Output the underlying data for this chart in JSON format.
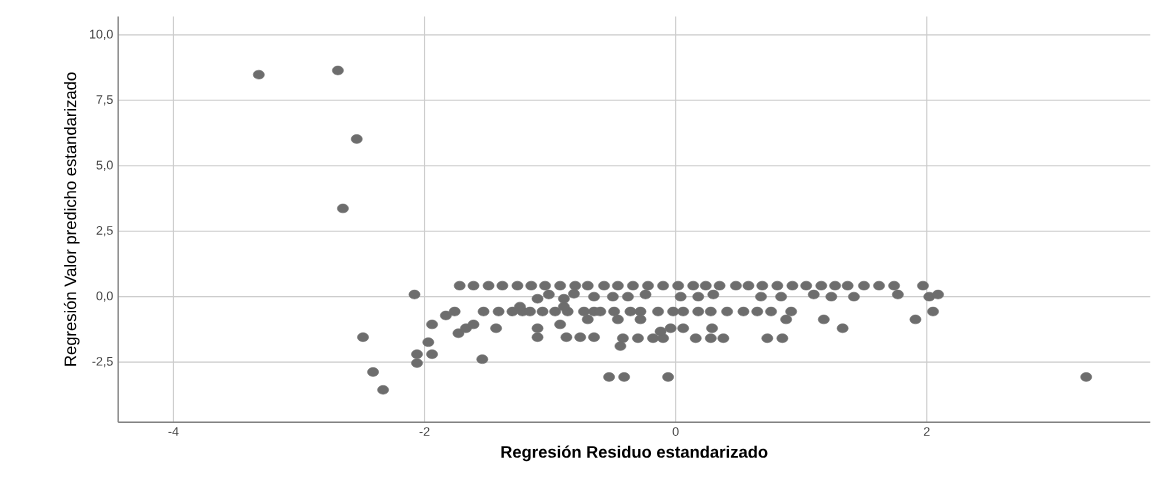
{
  "chart_data": {
    "type": "scatter",
    "xlabel": "Regresión Residuo estandarizado",
    "ylabel": "Regresión Valor predicho estandarizado",
    "xlim": [
      -4.44,
      3.78
    ],
    "ylim": [
      -4.8,
      10.7
    ],
    "xticks": [
      -4,
      -2,
      0,
      2
    ],
    "yticks": [
      {
        "value": -2.5,
        "label": "-2,5"
      },
      {
        "value": 0,
        "label": "0,0"
      },
      {
        "value": 2.5,
        "label": "2,5"
      },
      {
        "value": 5,
        "label": "5,0"
      },
      {
        "value": 7.5,
        "label": "7,5"
      },
      {
        "value": 10,
        "label": "10,0"
      }
    ],
    "grid": true,
    "marker": "circle",
    "color": "#6d6d6d",
    "x": [
      -3.32,
      -2.69,
      -2.54,
      -2.65,
      -2.08,
      -2.49,
      -2.41,
      -2.33,
      -2.06,
      -2.06,
      -1.94,
      -1.97,
      -1.94,
      -1.83,
      -1.76,
      -1.73,
      -1.67,
      -1.61,
      -1.54,
      -1.43,
      -1.72,
      -1.61,
      -1.49,
      -1.38,
      -1.26,
      -1.15,
      -1.04,
      -0.92,
      -0.8,
      -0.7,
      -0.57,
      -0.46,
      -0.34,
      -0.22,
      -0.1,
      0.02,
      0.14,
      0.24,
      0.35,
      0.48,
      0.58,
      0.69,
      0.81,
      0.93,
      1.04,
      1.16,
      1.27,
      1.37,
      1.5,
      1.62,
      1.74,
      1.97,
      -1.1,
      -1.01,
      -0.89,
      -0.81,
      -0.65,
      -0.5,
      -0.38,
      -0.24,
      0.04,
      0.18,
      0.3,
      0.68,
      0.84,
      1.1,
      1.24,
      1.42,
      1.77,
      2.02,
      2.09,
      -1.53,
      -1.41,
      -1.3,
      -1.22,
      -1.16,
      -1.06,
      -0.96,
      -0.86,
      -0.73,
      -0.65,
      -0.6,
      -0.49,
      -0.36,
      -0.28,
      -0.14,
      -0.02,
      0.06,
      0.18,
      0.28,
      0.41,
      0.54,
      0.65,
      0.76,
      0.92,
      2.05,
      -1.24,
      -0.89,
      -0.46,
      -0.28,
      0.88,
      1.18,
      1.91,
      -0.7,
      0.06,
      0.29,
      1.33,
      -1.1,
      -0.92,
      -1.1,
      -0.87,
      -0.76,
      -0.65,
      -0.42,
      -0.3,
      -0.18,
      -0.1,
      0.16,
      0.28,
      0.38,
      0.73,
      0.85,
      -0.44,
      -0.12,
      -0.04,
      -0.53,
      -0.41,
      -0.06,
      3.27
    ],
    "values": [
      8.48,
      8.64,
      6.02,
      3.37,
      0.08,
      -1.55,
      -2.88,
      -3.56,
      -2.54,
      -2.2,
      -2.2,
      -1.74,
      -1.06,
      -0.72,
      -0.57,
      -1.4,
      -1.21,
      -1.06,
      -2.39,
      -1.21,
      0.42,
      0.42,
      0.42,
      0.42,
      0.42,
      0.42,
      0.42,
      0.42,
      0.42,
      0.42,
      0.42,
      0.42,
      0.42,
      0.42,
      0.42,
      0.42,
      0.42,
      0.42,
      0.42,
      0.42,
      0.42,
      0.42,
      0.42,
      0.42,
      0.42,
      0.42,
      0.42,
      0.42,
      0.42,
      0.42,
      0.42,
      0.42,
      -0.08,
      0.08,
      -0.08,
      0.11,
      0.0,
      0.0,
      0.0,
      0.08,
      0.0,
      0.0,
      0.08,
      0.0,
      0.0,
      0.08,
      0.0,
      0.0,
      0.08,
      0.0,
      0.08,
      -0.57,
      -0.57,
      -0.57,
      -0.57,
      -0.57,
      -0.57,
      -0.57,
      -0.57,
      -0.57,
      -0.57,
      -0.57,
      -0.57,
      -0.57,
      -0.57,
      -0.57,
      -0.57,
      -0.57,
      -0.57,
      -0.57,
      -0.57,
      -0.57,
      -0.57,
      -0.57,
      -0.57,
      -0.57,
      -0.38,
      -0.38,
      -0.87,
      -0.87,
      -0.87,
      -0.87,
      -0.87,
      -0.87,
      -1.21,
      -1.21,
      -1.21,
      -1.21,
      -1.06,
      -1.55,
      -1.55,
      -1.55,
      -1.55,
      -1.59,
      -1.59,
      -1.59,
      -1.59,
      -1.59,
      -1.59,
      -1.59,
      -1.59,
      -1.59,
      -1.89,
      -1.33,
      -1.21,
      -3.07,
      -3.07,
      -3.07,
      -3.07
    ]
  }
}
